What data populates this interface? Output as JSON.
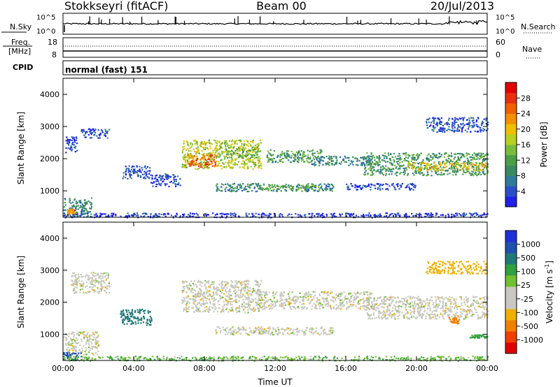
{
  "header": {
    "station": "Stokkseyri (fitACF)",
    "beam": "Beam 00",
    "date": "20/Jul/2013"
  },
  "strips": {
    "nsky_label": "N.Sky",
    "nsky_ticks": [
      "10^5",
      "10^0"
    ],
    "nsearch_label": "N.Search",
    "nsearch_ticks": [
      "10^5",
      "10^0"
    ],
    "freq_label_1": "Freq.",
    "freq_label_2": "[MHz]",
    "freq_ticks": [
      "18",
      "8"
    ],
    "nave_label": "Nave",
    "nave_ticks": [
      "60",
      "0"
    ],
    "cpid_label": "CPID",
    "cpid_text": "normal (fast) 151"
  },
  "colorbars": {
    "power": {
      "label": "Power [dB]",
      "ticks": [
        "28",
        "24",
        "20",
        "16",
        "12",
        "8",
        "4"
      ],
      "colors": [
        "#2020e8",
        "#2a4fc8",
        "#2f7a9c",
        "#3a8a60",
        "#4a9e48",
        "#7abc3a",
        "#b8d020",
        "#f0c000",
        "#f59000",
        "#f06000",
        "#e83010",
        "#e00000"
      ]
    },
    "velocity": {
      "label_main": "Velocity  [m s",
      "label_sup": "-1",
      "label_end": "]",
      "ticks": [
        "1000",
        "500",
        "100",
        "25",
        "-25",
        "-100",
        "-500",
        "-1000"
      ],
      "colors": [
        "#2030d8",
        "#2050b0",
        "#207878",
        "#30a040",
        "#70c030",
        "#c8c8c0",
        "#c8c8c0",
        "#f0b000",
        "#f08000",
        "#f04000",
        "#e00000"
      ]
    }
  },
  "chart_data": [
    {
      "type": "line",
      "title": "N.Sky / N.Search",
      "ylabel": "N.Sky",
      "x_range": [
        "00:00",
        "00:00"
      ],
      "series": [
        {
          "name": "N.Sky",
          "description_free": true,
          "values_log10": [
            4.1,
            4.1,
            4.15,
            4.2,
            4.15,
            4.2,
            4.1,
            4.2,
            4.2,
            4.2,
            4.25,
            4.3,
            4.3
          ]
        }
      ]
    },
    {
      "type": "line",
      "title": "Freq. / Nave",
      "ylabel": "[MHz]",
      "ylim": [
        8,
        18
      ],
      "series": [
        {
          "name": "Freq.",
          "values": [
            10.4,
            10.4,
            10.4,
            10.4,
            10.4,
            10.4,
            10.4,
            10.4,
            10.4,
            10.4,
            10.4,
            10.4,
            10.4
          ]
        },
        {
          "name": "Nave",
          "values": [
            36,
            36,
            36,
            36,
            36,
            36,
            36,
            36,
            36,
            36,
            36,
            36,
            36
          ]
        }
      ]
    },
    {
      "type": "heatmap",
      "title": "Power",
      "xlabel": "",
      "ylabel": "Slant Range [km]",
      "xlim_hours": [
        0,
        24
      ],
      "ylim_km": [
        180,
        4500
      ],
      "x_ticks": [
        "00:00",
        "04:00",
        "08:00",
        "12:00",
        "16:00",
        "20:00",
        "00:00"
      ],
      "y_ticks": [
        1000,
        2000,
        3000,
        4000
      ],
      "patches": [
        {
          "h0": 6.7,
          "h1": 11.2,
          "r0": 1700,
          "r1": 2600,
          "dB": 18
        },
        {
          "h0": 7.0,
          "h1": 8.6,
          "r0": 1750,
          "r1": 2150,
          "dB": 26
        },
        {
          "h0": 9.2,
          "h1": 11.0,
          "r0": 2050,
          "r1": 2400,
          "dB": 14
        },
        {
          "h0": 11.5,
          "h1": 14.6,
          "r0": 1900,
          "r1": 2300,
          "dB": 12
        },
        {
          "h0": 14.0,
          "h1": 17.5,
          "r0": 1800,
          "r1": 2100,
          "dB": 10
        },
        {
          "h0": 17.0,
          "h1": 24.0,
          "r0": 1500,
          "r1": 2200,
          "dB": 12
        },
        {
          "h0": 19.5,
          "h1": 24.0,
          "r0": 1650,
          "r1": 1900,
          "dB": 20
        },
        {
          "h0": 8.6,
          "h1": 15.3,
          "r0": 1000,
          "r1": 1250,
          "dB": 10
        },
        {
          "h0": 11.0,
          "h1": 14.5,
          "r0": 1050,
          "r1": 1200,
          "dB": 14
        },
        {
          "h0": 1.0,
          "h1": 2.6,
          "r0": 2650,
          "r1": 2950,
          "dB": 6
        },
        {
          "h0": 0.1,
          "h1": 0.8,
          "r0": 2200,
          "r1": 2700,
          "dB": 5
        },
        {
          "h0": 3.3,
          "h1": 4.9,
          "r0": 1400,
          "r1": 1800,
          "dB": 6
        },
        {
          "h0": 4.9,
          "h1": 6.6,
          "r0": 1150,
          "r1": 1550,
          "dB": 5
        },
        {
          "h0": 0.0,
          "h1": 1.6,
          "r0": 200,
          "r1": 800,
          "dB": 10
        },
        {
          "h0": 0.2,
          "h1": 0.6,
          "r0": 250,
          "r1": 450,
          "dB": 24
        },
        {
          "h0": 20.5,
          "h1": 24.0,
          "r0": 2850,
          "r1": 3300,
          "dB": 6
        },
        {
          "h0": 16.0,
          "h1": 20.0,
          "r0": 1050,
          "r1": 1250,
          "dB": 5
        },
        {
          "h0": 0.0,
          "h1": 24.0,
          "r0": 190,
          "r1": 330,
          "dB": 4
        }
      ]
    },
    {
      "type": "heatmap",
      "title": "Velocity",
      "xlabel": "Time UT",
      "ylabel": "Slant Range [km]",
      "xlim_hours": [
        0,
        24
      ],
      "ylim_km": [
        180,
        4500
      ],
      "x_ticks": [
        "00:00",
        "04:00",
        "08:00",
        "12:00",
        "16:00",
        "20:00",
        "00:00"
      ],
      "y_ticks": [
        1000,
        2000,
        3000,
        4000
      ],
      "patches": [
        {
          "h0": 6.7,
          "h1": 11.2,
          "r0": 1700,
          "r1": 2700,
          "v": 0
        },
        {
          "h0": 11.0,
          "h1": 17.5,
          "r0": 1800,
          "r1": 2350,
          "v": 0
        },
        {
          "h0": 17.0,
          "h1": 24.0,
          "r0": 1500,
          "r1": 2200,
          "v": 0
        },
        {
          "h0": 8.6,
          "h1": 15.3,
          "r0": 1000,
          "r1": 1250,
          "v": 0
        },
        {
          "h0": 0.4,
          "h1": 2.6,
          "r0": 2300,
          "r1": 2950,
          "v": 0
        },
        {
          "h0": 0.0,
          "h1": 2.0,
          "r0": 350,
          "r1": 1100,
          "v": 0
        },
        {
          "h0": 3.2,
          "h1": 5.0,
          "r0": 1300,
          "r1": 1800,
          "v": 150
        },
        {
          "h0": 0.0,
          "h1": 1.0,
          "r0": 200,
          "r1": 450,
          "v": 400
        },
        {
          "h0": 21.8,
          "h1": 22.4,
          "r0": 1350,
          "r1": 1550,
          "v": -400
        },
        {
          "h0": 20.5,
          "h1": 24.0,
          "r0": 2900,
          "r1": 3300,
          "v": -60
        },
        {
          "h0": 23.0,
          "h1": 24.0,
          "r0": 900,
          "r1": 1000,
          "v": 80
        },
        {
          "h0": 0.0,
          "h1": 24.0,
          "r0": 190,
          "r1": 330,
          "v": 50
        }
      ]
    }
  ],
  "axis_xlabel": "Time UT",
  "axis_ylabel": "Slant Range [km]"
}
